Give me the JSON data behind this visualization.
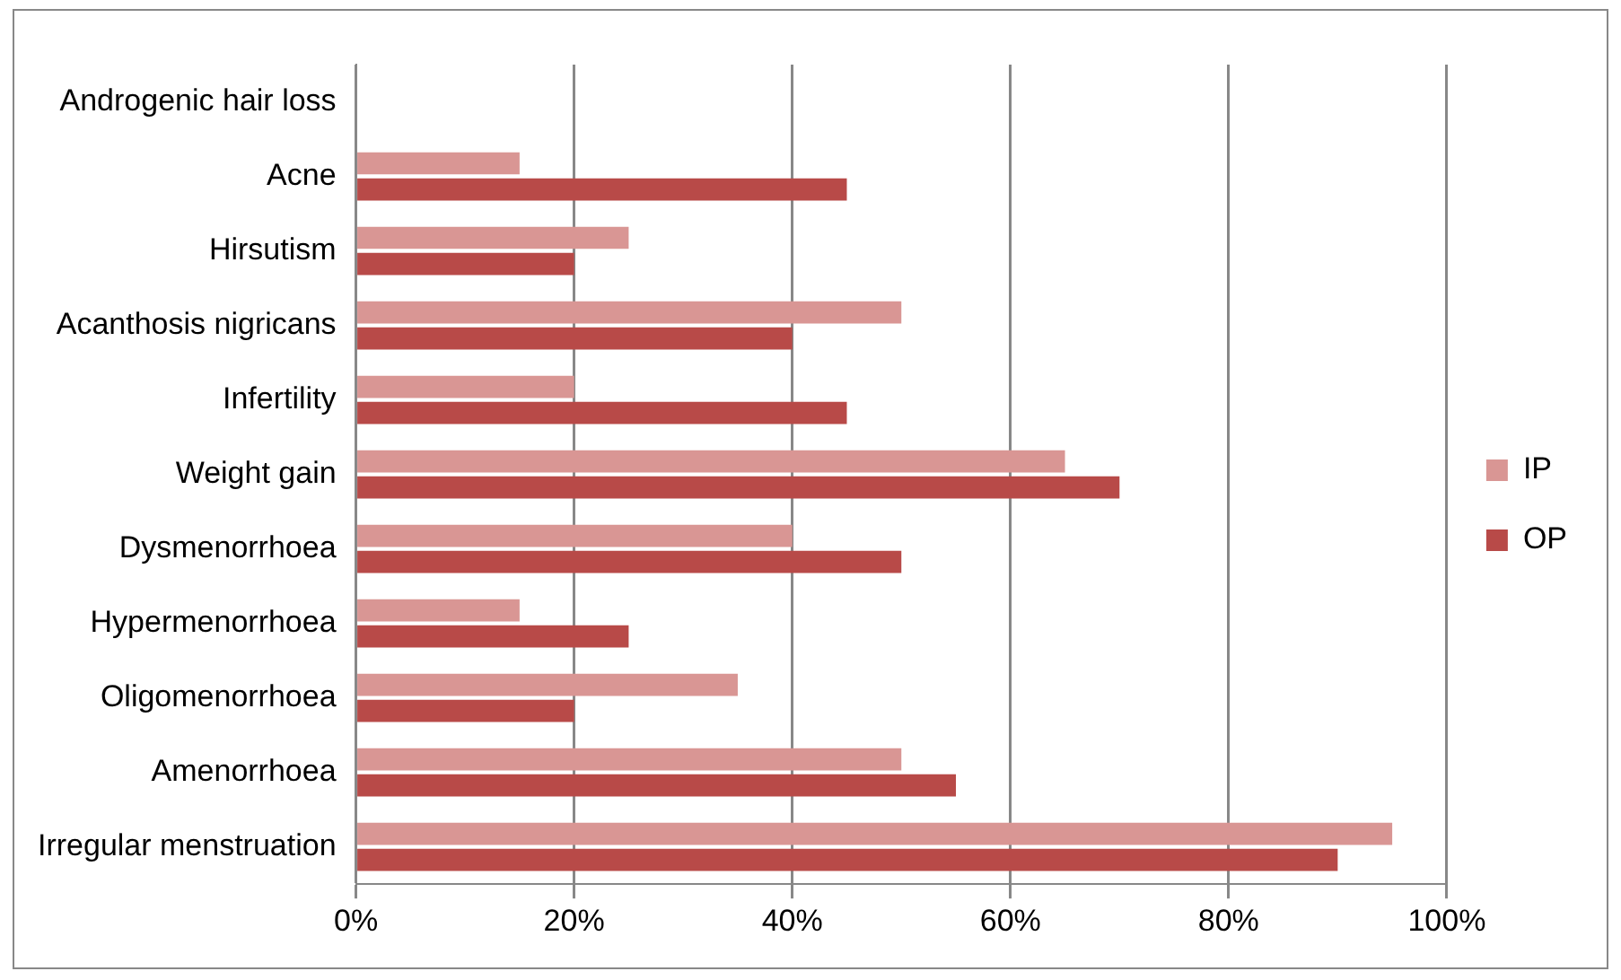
{
  "chart_data": {
    "type": "bar",
    "orientation": "horizontal",
    "categories": [
      "Androgenic hair loss",
      "Acne",
      "Hirsutism",
      "Acanthosis nigricans",
      "Infertility",
      "Weight gain",
      "Dysmenorrhoea",
      "Hypermenorrhoea",
      "Oligomenorrhoea",
      "Amenorrhoea",
      "Irregular menstruation"
    ],
    "series": [
      {
        "name": "IP",
        "color": "#d99694",
        "values": [
          0,
          15,
          25,
          50,
          20,
          65,
          40,
          15,
          35,
          50,
          95
        ]
      },
      {
        "name": "OP",
        "color": "#b84a48",
        "values": [
          0,
          45,
          20,
          40,
          45,
          70,
          50,
          25,
          20,
          55,
          90
        ]
      }
    ],
    "xlim": [
      0,
      100
    ],
    "xticks": [
      {
        "value": 0,
        "label": "0%"
      },
      {
        "value": 20,
        "label": "20%"
      },
      {
        "value": 40,
        "label": "40%"
      },
      {
        "value": 60,
        "label": "60%"
      },
      {
        "value": 80,
        "label": "80%"
      },
      {
        "value": 100,
        "label": "100%"
      }
    ],
    "grid": "x",
    "legend": "right"
  }
}
